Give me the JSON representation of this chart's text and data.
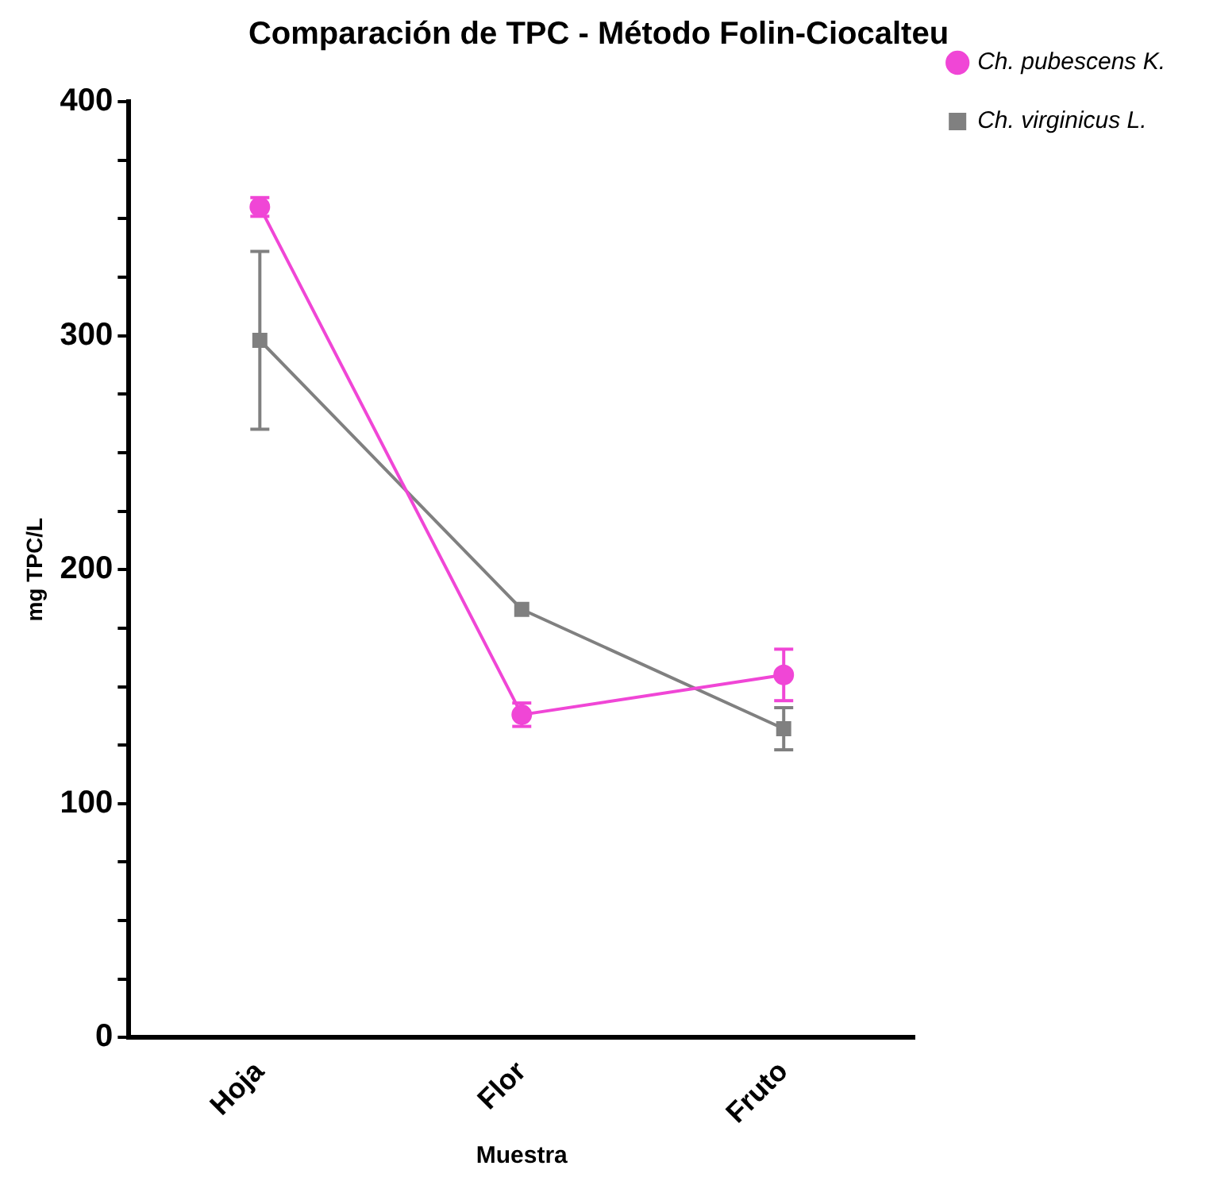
{
  "chart_data": {
    "type": "line",
    "title": "Comparación de TPC - Método Folin-Ciocalteu",
    "xlabel": "Muestra",
    "ylabel": "mg TPC/L",
    "categories": [
      "Hoja",
      "Flor",
      "Fruto"
    ],
    "series": [
      {
        "name": "Ch. pubescens K.",
        "color": "#f046d6",
        "marker": "circle",
        "values": [
          355,
          138,
          155
        ],
        "errors": [
          4,
          5,
          11
        ]
      },
      {
        "name": "Ch. virginicus L.",
        "color": "#808080",
        "marker": "square",
        "values": [
          298,
          183,
          132
        ],
        "errors": [
          38,
          null,
          9
        ]
      }
    ],
    "ylim": [
      0,
      400
    ],
    "yticks": [
      0,
      {
        "value": 25,
        "label": null
      },
      {
        "value": 50,
        "label": null
      },
      {
        "value": 75,
        "label": null
      },
      100,
      {
        "value": 125,
        "label": null
      },
      {
        "value": 150,
        "label": null
      },
      {
        "value": 175,
        "label": null
      },
      200,
      {
        "value": 225,
        "label": null
      },
      {
        "value": 250,
        "label": null
      },
      {
        "value": 275,
        "label": null
      },
      300,
      {
        "value": 325,
        "label": null
      },
      {
        "value": 350,
        "label": null
      },
      {
        "value": 375,
        "label": null
      },
      400
    ],
    "grid": false,
    "legend": "top right",
    "line_style": "solid"
  }
}
